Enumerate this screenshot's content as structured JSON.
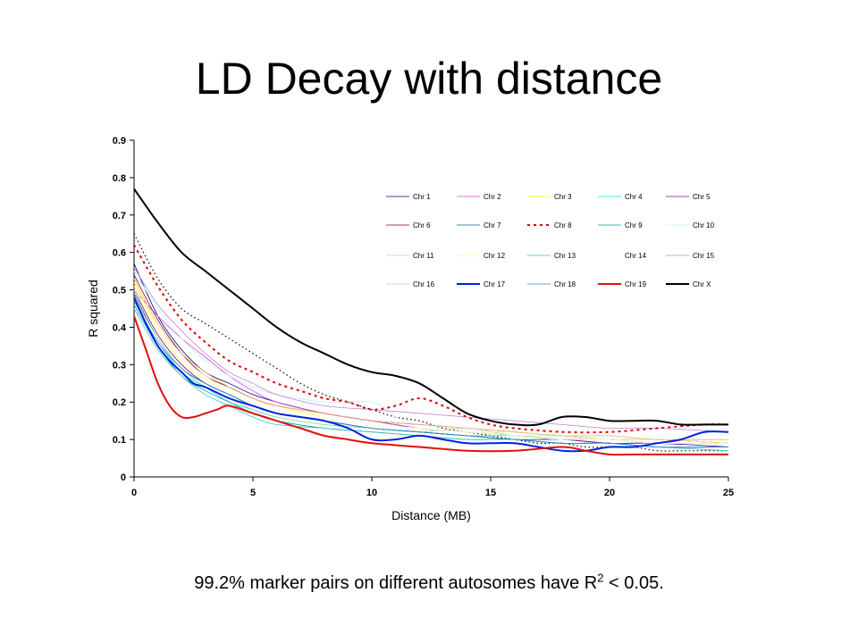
{
  "slide": {
    "title": "LD Decay with distance",
    "caption_main": "99.2% marker pairs on different autosomes have R",
    "caption_sup": "2",
    "caption_tail": " < 0.05."
  },
  "chart_data": {
    "type": "line",
    "title": "",
    "xlabel": "Distance (MB)",
    "ylabel": "R squared",
    "xlim": [
      0,
      25
    ],
    "ylim": [
      0,
      0.9
    ],
    "xticks": [
      "0",
      "5",
      "10",
      "15",
      "20",
      "25"
    ],
    "yticks": [
      "0",
      "0.1",
      "0.2",
      "0.3",
      "0.4",
      "0.5",
      "0.6",
      "0.7",
      "0.8",
      "0.9"
    ],
    "grid": false,
    "legend_position": "top-right inside",
    "series": [
      {
        "name": "Chr 1",
        "color": "#000080",
        "width": 0.8,
        "dash": "",
        "x": [
          0,
          1,
          2,
          3,
          4,
          5,
          6,
          8,
          10,
          12,
          14,
          16,
          18,
          20,
          22,
          25
        ],
        "y": [
          0.57,
          0.43,
          0.34,
          0.28,
          0.25,
          0.22,
          0.2,
          0.17,
          0.15,
          0.13,
          0.12,
          0.11,
          0.1,
          0.1,
          0.09,
          0.09
        ]
      },
      {
        "name": "Chr 2",
        "color": "#e040e0",
        "width": 0.8,
        "dash": "",
        "x": [
          0,
          1,
          2,
          3,
          4,
          5,
          6,
          8,
          10,
          12,
          14,
          16,
          18,
          20,
          22,
          25
        ],
        "y": [
          0.5,
          0.43,
          0.37,
          0.32,
          0.27,
          0.23,
          0.2,
          0.17,
          0.15,
          0.13,
          0.12,
          0.11,
          0.1,
          0.1,
          0.09,
          0.09
        ]
      },
      {
        "name": "Chr 3",
        "color": "#ffff00",
        "width": 0.8,
        "dash": "",
        "x": [
          0,
          1,
          2,
          3,
          4,
          5,
          6,
          8,
          10,
          12,
          14,
          16,
          18,
          20,
          22,
          25
        ],
        "y": [
          0.52,
          0.4,
          0.32,
          0.27,
          0.24,
          0.21,
          0.19,
          0.16,
          0.14,
          0.13,
          0.12,
          0.11,
          0.11,
          0.1,
          0.1,
          0.09
        ]
      },
      {
        "name": "Chr 4",
        "color": "#00e0e0",
        "width": 0.8,
        "dash": "",
        "x": [
          0,
          1,
          2,
          3,
          4,
          5,
          6,
          8,
          10,
          12,
          14,
          16,
          18,
          20,
          22,
          25
        ],
        "y": [
          0.47,
          0.36,
          0.28,
          0.24,
          0.2,
          0.18,
          0.16,
          0.14,
          0.13,
          0.12,
          0.11,
          0.11,
          0.1,
          0.09,
          0.09,
          0.08
        ]
      },
      {
        "name": "Chr 5",
        "color": "#800080",
        "width": 0.8,
        "dash": "",
        "x": [
          0,
          1,
          2,
          3,
          4,
          5,
          6,
          8,
          10,
          12,
          14,
          16,
          18,
          20,
          22,
          25
        ],
        "y": [
          0.5,
          0.38,
          0.3,
          0.25,
          0.22,
          0.19,
          0.17,
          0.15,
          0.13,
          0.12,
          0.11,
          0.1,
          0.1,
          0.09,
          0.09,
          0.08
        ]
      },
      {
        "name": "Chr 6",
        "color": "#800000",
        "width": 0.8,
        "dash": "",
        "x": [
          0,
          1,
          2,
          3,
          4,
          5,
          6,
          8,
          10,
          12,
          14,
          16,
          18,
          20,
          22,
          25
        ],
        "y": [
          0.54,
          0.42,
          0.33,
          0.27,
          0.24,
          0.21,
          0.19,
          0.17,
          0.15,
          0.14,
          0.13,
          0.12,
          0.11,
          0.1,
          0.1,
          0.09
        ]
      },
      {
        "name": "Chr 7",
        "color": "#006080",
        "width": 0.8,
        "dash": "",
        "x": [
          0,
          1,
          2,
          3,
          4,
          5,
          6,
          8,
          10,
          12,
          14,
          16,
          18,
          20,
          22,
          25
        ],
        "y": [
          0.49,
          0.37,
          0.29,
          0.25,
          0.22,
          0.19,
          0.17,
          0.15,
          0.13,
          0.12,
          0.11,
          0.1,
          0.09,
          0.09,
          0.08,
          0.08
        ]
      },
      {
        "name": "Chr 8",
        "color": "#e00000",
        "width": 2,
        "dash": "3,4",
        "x": [
          0,
          1,
          2,
          3,
          4,
          5,
          6,
          7,
          8,
          9,
          10,
          11,
          12,
          13,
          14,
          15,
          16,
          18,
          20,
          22,
          24,
          25
        ],
        "y": [
          0.62,
          0.51,
          0.42,
          0.36,
          0.31,
          0.28,
          0.25,
          0.23,
          0.21,
          0.2,
          0.18,
          0.19,
          0.21,
          0.19,
          0.16,
          0.14,
          0.13,
          0.12,
          0.12,
          0.13,
          0.14,
          0.14
        ]
      },
      {
        "name": "Chr 9",
        "color": "#00a0a0",
        "width": 0.8,
        "dash": "",
        "x": [
          0,
          1,
          2,
          3,
          4,
          5,
          6,
          8,
          10,
          12,
          14,
          16,
          18,
          20,
          22,
          25
        ],
        "y": [
          0.46,
          0.35,
          0.27,
          0.23,
          0.2,
          0.17,
          0.15,
          0.13,
          0.12,
          0.11,
          0.1,
          0.1,
          0.09,
          0.09,
          0.08,
          0.08
        ]
      },
      {
        "name": "Chr 10",
        "color": "#c0f0f0",
        "width": 0.8,
        "dash": "",
        "x": [
          0,
          1,
          2,
          3,
          4,
          5,
          6,
          8,
          10,
          11,
          12,
          14,
          16,
          18,
          20,
          22,
          25
        ],
        "y": [
          0.55,
          0.45,
          0.37,
          0.31,
          0.27,
          0.24,
          0.22,
          0.2,
          0.2,
          0.16,
          0.14,
          0.13,
          0.12,
          0.11,
          0.11,
          0.1,
          0.1
        ]
      },
      {
        "name": "Chr 11",
        "color": "#a0e0a0",
        "width": 0.8,
        "dash": "",
        "x": [
          0,
          1,
          2,
          3,
          4,
          5,
          6,
          8,
          10,
          12,
          14,
          16,
          18,
          20,
          22,
          25
        ],
        "y": [
          0.48,
          0.37,
          0.29,
          0.24,
          0.21,
          0.18,
          0.16,
          0.14,
          0.13,
          0.12,
          0.13,
          0.11,
          0.1,
          0.1,
          0.09,
          0.09
        ]
      },
      {
        "name": "Chr 12",
        "color": "#ffff80",
        "width": 0.8,
        "dash": "",
        "x": [
          0,
          1,
          2,
          3,
          4,
          5,
          6,
          8,
          10,
          12,
          14,
          16,
          18,
          20,
          22,
          25
        ],
        "y": [
          0.51,
          0.39,
          0.31,
          0.26,
          0.23,
          0.2,
          0.18,
          0.16,
          0.14,
          0.13,
          0.12,
          0.12,
          0.11,
          0.1,
          0.1,
          0.09
        ]
      },
      {
        "name": "Chr 13",
        "color": "#40c0c0",
        "width": 0.8,
        "dash": "",
        "x": [
          0,
          1,
          2,
          3,
          4,
          5,
          6,
          8,
          10,
          12,
          14,
          16,
          18,
          20,
          22,
          25
        ],
        "y": [
          0.45,
          0.34,
          0.27,
          0.22,
          0.19,
          0.16,
          0.14,
          0.13,
          0.12,
          0.11,
          0.1,
          0.1,
          0.09,
          0.09,
          0.08,
          0.07
        ]
      },
      {
        "name": "Chr 14",
        "color": "#ffffff",
        "width": 0.8,
        "dash": "",
        "x": [
          0,
          1,
          2,
          3,
          4,
          5,
          6,
          8,
          10,
          12,
          14,
          16,
          18,
          20,
          22,
          25
        ],
        "y": [
          0.5,
          0.4,
          0.32,
          0.27,
          0.23,
          0.2,
          0.18,
          0.16,
          0.14,
          0.13,
          0.12,
          0.11,
          0.1,
          0.1,
          0.09,
          0.09
        ]
      },
      {
        "name": "Chr 15",
        "color": "#c080e0",
        "width": 0.8,
        "dash": "",
        "x": [
          0,
          1,
          2,
          3,
          4,
          5,
          6,
          8,
          10,
          12,
          14,
          16,
          18,
          20,
          22,
          25
        ],
        "y": [
          0.56,
          0.46,
          0.39,
          0.33,
          0.28,
          0.25,
          0.22,
          0.19,
          0.18,
          0.17,
          0.16,
          0.15,
          0.14,
          0.13,
          0.13,
          0.12
        ]
      },
      {
        "name": "Chr 16",
        "color": "#f0b090",
        "width": 0.8,
        "dash": "",
        "x": [
          0,
          1,
          2,
          3,
          4,
          5,
          6,
          8,
          10,
          12,
          14,
          16,
          18,
          20,
          22,
          25
        ],
        "y": [
          0.53,
          0.41,
          0.33,
          0.28,
          0.24,
          0.21,
          0.19,
          0.17,
          0.15,
          0.14,
          0.13,
          0.12,
          0.11,
          0.11,
          0.1,
          0.1
        ]
      },
      {
        "name": "Chr 17",
        "color": "#0020e0",
        "width": 2,
        "dash": "",
        "x": [
          0,
          0.5,
          1,
          1.5,
          2,
          2.5,
          3,
          4,
          5,
          6,
          7,
          8,
          9,
          10,
          11,
          12,
          13,
          14,
          15,
          16,
          17,
          18,
          19,
          20,
          21,
          22,
          23,
          24,
          25
        ],
        "y": [
          0.48,
          0.41,
          0.35,
          0.31,
          0.28,
          0.25,
          0.24,
          0.21,
          0.19,
          0.17,
          0.16,
          0.15,
          0.13,
          0.1,
          0.1,
          0.11,
          0.1,
          0.09,
          0.09,
          0.09,
          0.08,
          0.07,
          0.07,
          0.08,
          0.08,
          0.09,
          0.1,
          0.12,
          0.12
        ]
      },
      {
        "name": "Chr 18",
        "color": "#2090d0",
        "width": 0.8,
        "dash": "",
        "x": [
          0,
          1,
          2,
          3,
          4,
          5,
          6,
          8,
          10,
          12,
          14,
          16,
          18,
          20,
          22,
          25
        ],
        "y": [
          0.47,
          0.36,
          0.29,
          0.25,
          0.22,
          0.19,
          0.17,
          0.15,
          0.13,
          0.12,
          0.11,
          0.1,
          0.09,
          0.09,
          0.08,
          0.08
        ]
      },
      {
        "name": "Chr 19",
        "color": "#e01010",
        "width": 2,
        "dash": "",
        "x": [
          0,
          0.5,
          1,
          1.5,
          2,
          2.5,
          3,
          3.5,
          4,
          5,
          6,
          7,
          8,
          9,
          10,
          12,
          14,
          16,
          18,
          19,
          20,
          21,
          22,
          23,
          24,
          25
        ],
        "y": [
          0.43,
          0.34,
          0.25,
          0.19,
          0.16,
          0.16,
          0.17,
          0.18,
          0.19,
          0.17,
          0.15,
          0.13,
          0.11,
          0.1,
          0.09,
          0.08,
          0.07,
          0.07,
          0.08,
          0.07,
          0.06,
          0.06,
          0.06,
          0.06,
          0.06,
          0.06
        ]
      },
      {
        "name": "Chr X",
        "color": "#000000",
        "width": 2,
        "dash": "",
        "x": [
          0,
          1,
          2,
          3,
          4,
          5,
          6,
          7,
          8,
          9,
          10,
          11,
          12,
          13,
          14,
          15,
          16,
          17,
          18,
          19,
          20,
          21,
          22,
          23,
          24,
          25
        ],
        "y": [
          0.77,
          0.68,
          0.6,
          0.55,
          0.5,
          0.45,
          0.4,
          0.36,
          0.33,
          0.3,
          0.28,
          0.27,
          0.25,
          0.21,
          0.17,
          0.15,
          0.14,
          0.14,
          0.16,
          0.16,
          0.15,
          0.15,
          0.15,
          0.14,
          0.14,
          0.14
        ]
      }
    ],
    "extra_lines": [
      {
        "color": "#000000",
        "width": 1.2,
        "dash": "1.5,3",
        "x": [
          0,
          1,
          2,
          3,
          4,
          5,
          6,
          7,
          8,
          9,
          10,
          11,
          12,
          13,
          14,
          15,
          16,
          17,
          18,
          19,
          20,
          21,
          22,
          23,
          24,
          25
        ],
        "y": [
          0.65,
          0.53,
          0.45,
          0.41,
          0.37,
          0.33,
          0.29,
          0.25,
          0.22,
          0.2,
          0.18,
          0.16,
          0.15,
          0.13,
          0.12,
          0.11,
          0.1,
          0.09,
          0.09,
          0.08,
          0.08,
          0.08,
          0.07,
          0.07,
          0.07,
          0.07
        ]
      }
    ]
  }
}
